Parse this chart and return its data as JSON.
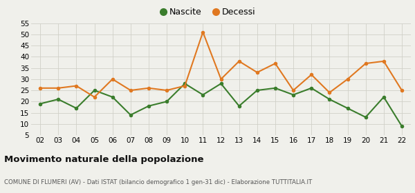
{
  "years": [
    "02",
    "03",
    "04",
    "05",
    "06",
    "07",
    "08",
    "09",
    "10",
    "11",
    "12",
    "13",
    "14",
    "15",
    "16",
    "17",
    "18",
    "19",
    "20",
    "21",
    "22"
  ],
  "nascite": [
    19,
    21,
    17,
    25,
    22,
    14,
    18,
    20,
    28,
    23,
    28,
    18,
    25,
    26,
    23,
    26,
    21,
    17,
    13,
    22,
    9
  ],
  "decessi": [
    26,
    26,
    27,
    22,
    30,
    25,
    26,
    25,
    27,
    51,
    30,
    38,
    33,
    37,
    25,
    32,
    24,
    30,
    37,
    38,
    25
  ],
  "nascite_color": "#3a7d2c",
  "decessi_color": "#e07820",
  "background_color": "#f0f0eb",
  "grid_color": "#d0d0c8",
  "ylim": [
    5,
    55
  ],
  "yticks": [
    5,
    10,
    15,
    20,
    25,
    30,
    35,
    40,
    45,
    50,
    55
  ],
  "title": "Movimento naturale della popolazione",
  "subtitle": "COMUNE DI FLUMERI (AV) - Dati ISTAT (bilancio demografico 1 gen-31 dic) - Elaborazione TUTTITALIA.IT",
  "legend_nascite": "Nascite",
  "legend_decessi": "Decessi",
  "marker_size": 4,
  "line_width": 1.5
}
